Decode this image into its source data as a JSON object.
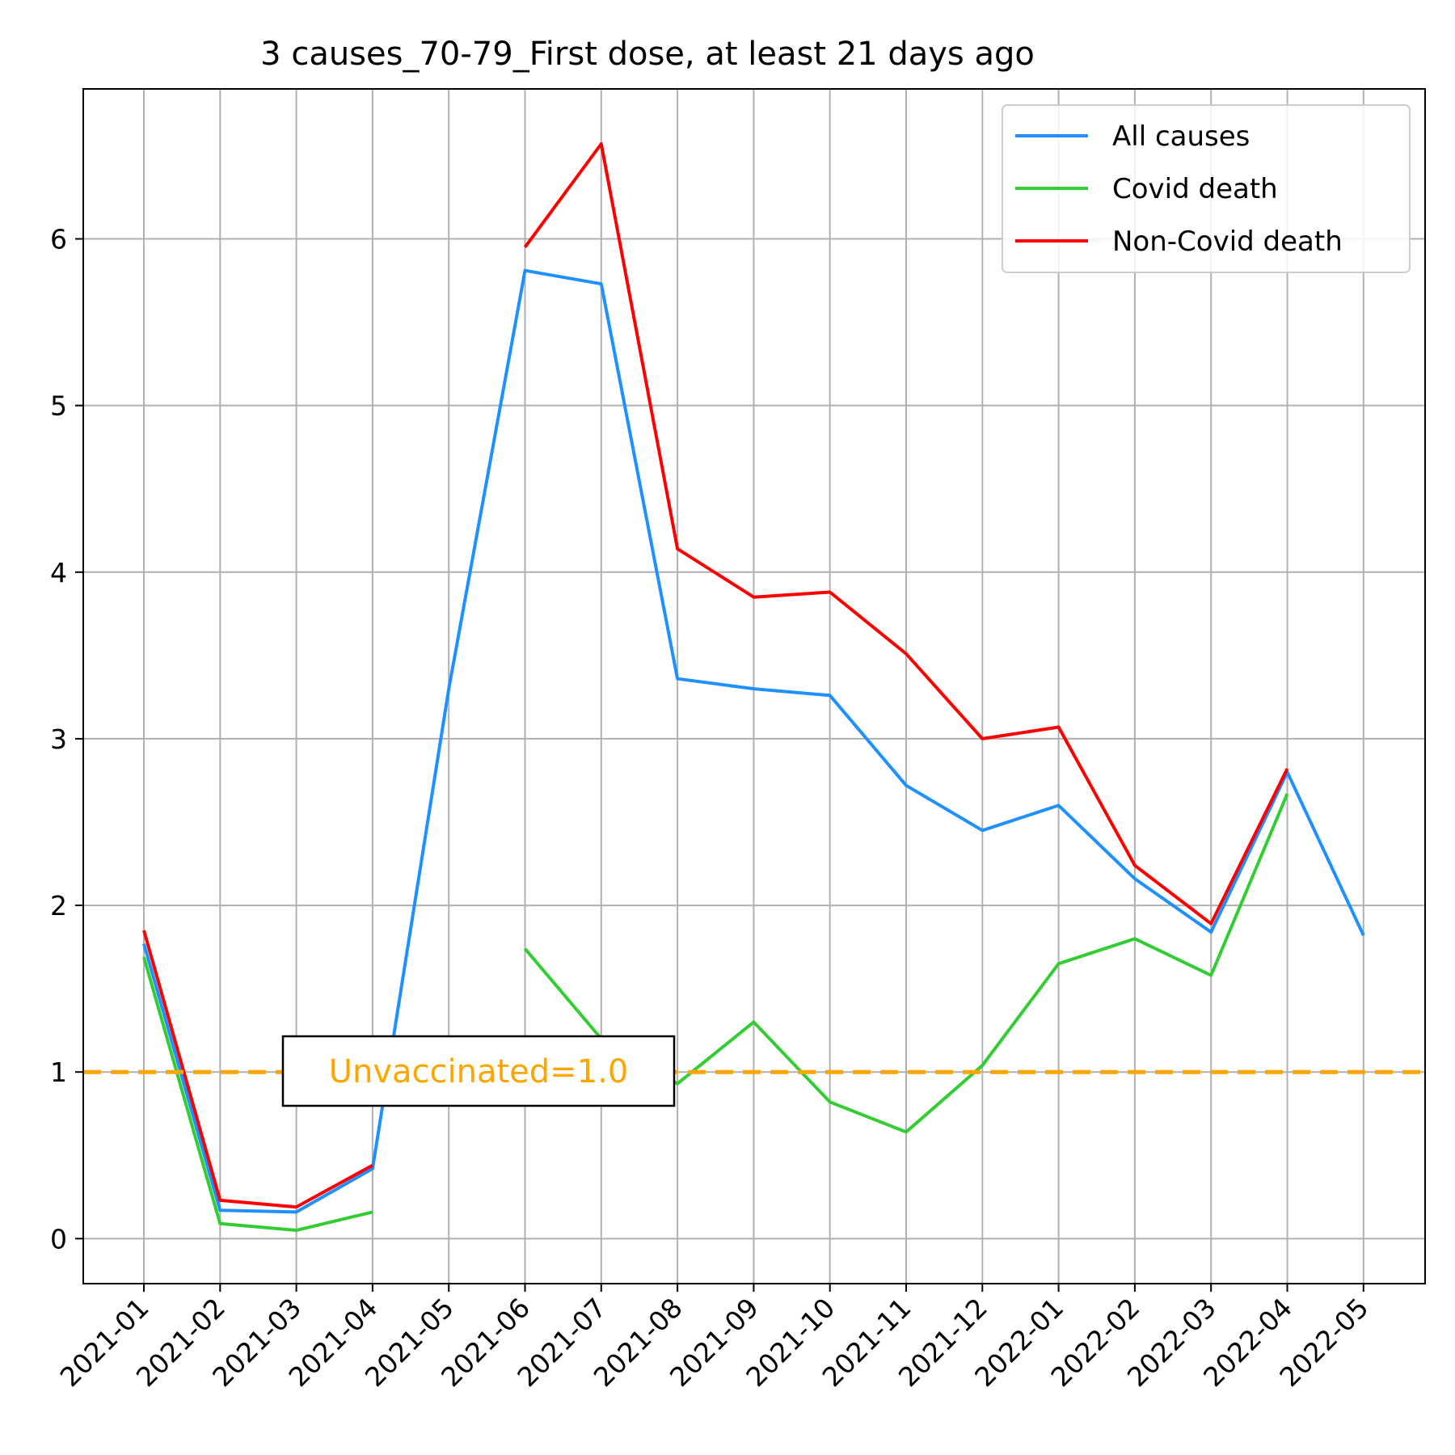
{
  "chart_data": {
    "type": "line",
    "title": "3 causes_70-79_First dose, at least 21 days ago",
    "xlabel": "",
    "ylabel": "",
    "categories": [
      "2021-01",
      "2021-02",
      "2021-03",
      "2021-04",
      "2021-05",
      "2021-06",
      "2021-07",
      "2021-08",
      "2021-09",
      "2021-10",
      "2021-11",
      "2021-12",
      "2022-01",
      "2022-02",
      "2022-03",
      "2022-04",
      "2022-05"
    ],
    "ylim": [
      -0.27,
      6.9
    ],
    "yticks": [
      0,
      1,
      2,
      3,
      4,
      5,
      6
    ],
    "grid": true,
    "legend_position": "top-right",
    "series": [
      {
        "name": "All causes",
        "color": "#1e90ff",
        "values": [
          1.77,
          0.17,
          0.16,
          0.42,
          3.3,
          5.81,
          5.73,
          3.36,
          3.3,
          3.26,
          2.72,
          2.45,
          2.6,
          2.16,
          1.84,
          2.8,
          1.82
        ]
      },
      {
        "name": "Covid death",
        "color": "#32cd32",
        "values": [
          1.69,
          0.09,
          0.05,
          0.16,
          null,
          1.74,
          1.2,
          0.93,
          1.3,
          0.82,
          0.64,
          1.04,
          1.65,
          1.8,
          1.58,
          2.67,
          null
        ]
      },
      {
        "name": "Non-Covid death",
        "color": "#ff0000",
        "values": [
          1.85,
          0.23,
          0.19,
          0.44,
          null,
          5.95,
          6.57,
          4.14,
          3.85,
          3.88,
          3.51,
          3.0,
          3.07,
          2.24,
          1.89,
          2.82,
          null
        ]
      }
    ],
    "reference_line": {
      "value": 1.0,
      "label": "Unvaccinated=1.0",
      "color": "#ffa500",
      "style": "dashed"
    }
  }
}
